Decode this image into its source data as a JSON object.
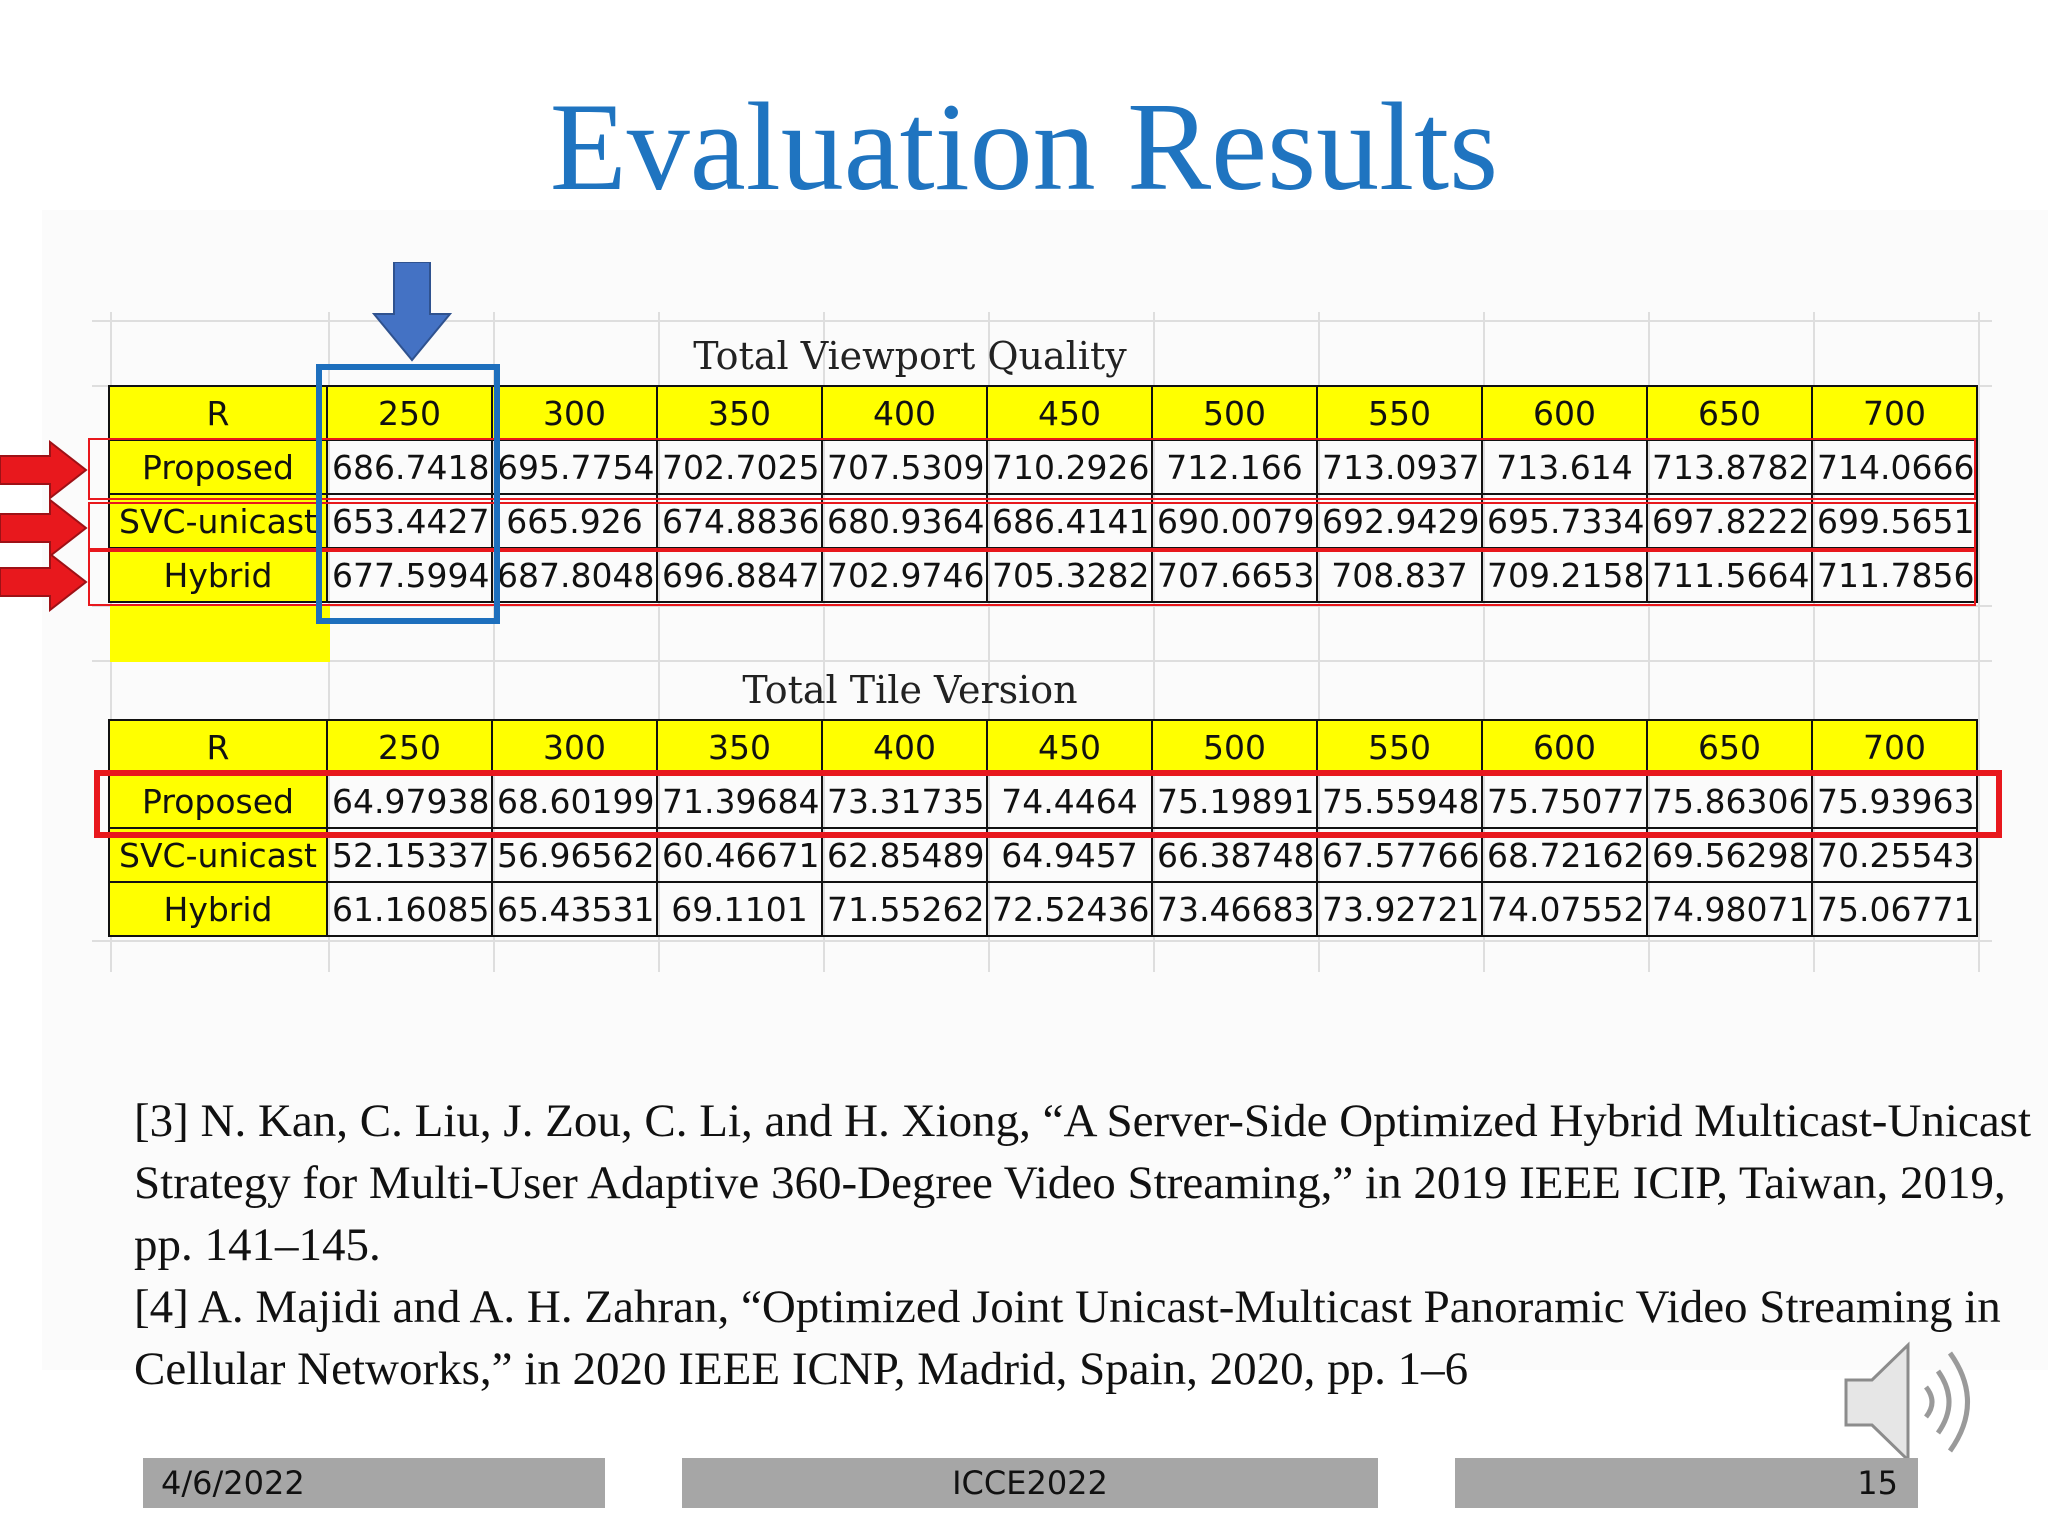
{
  "slide": {
    "title": "Evaluation Results",
    "footer": {
      "date": "4/6/2022",
      "conference": "ICCE2022",
      "page_number": "15"
    }
  },
  "tables": [
    {
      "caption": "Total Viewport Quality",
      "header_label": "R",
      "columns": [
        "250",
        "300",
        "350",
        "400",
        "450",
        "500",
        "550",
        "600",
        "650",
        "700"
      ],
      "rows": [
        {
          "label": "Proposed",
          "values": [
            "686.7418",
            "695.7754",
            "702.7025",
            "707.5309",
            "710.2926",
            "712.166",
            "713.0937",
            "713.614",
            "713.8782",
            "714.0666"
          ]
        },
        {
          "label": "SVC-unicast",
          "values": [
            "653.4427",
            "665.926",
            "674.8836",
            "680.9364",
            "686.4141",
            "690.0079",
            "692.9429",
            "695.7334",
            "697.8222",
            "699.5651"
          ]
        },
        {
          "label": "Hybrid",
          "values": [
            "677.5994",
            "687.8048",
            "696.8847",
            "702.9746",
            "705.3282",
            "707.6653",
            "708.837",
            "709.2158",
            "711.5664",
            "711.7856"
          ]
        }
      ]
    },
    {
      "caption": "Total Tile Version",
      "header_label": "R",
      "columns": [
        "250",
        "300",
        "350",
        "400",
        "450",
        "500",
        "550",
        "600",
        "650",
        "700"
      ],
      "rows": [
        {
          "label": "Proposed",
          "values": [
            "64.97938",
            "68.60199",
            "71.39684",
            "73.31735",
            "74.4464",
            "75.19891",
            "75.55948",
            "75.75077",
            "75.86306",
            "75.93963"
          ]
        },
        {
          "label": "SVC-unicast",
          "values": [
            "52.15337",
            "56.96562",
            "60.46671",
            "62.85489",
            "64.9457",
            "66.38748",
            "67.57766",
            "68.72162",
            "69.56298",
            "70.25543"
          ]
        },
        {
          "label": "Hybrid",
          "values": [
            "61.16085",
            "65.43531",
            "69.1101",
            "71.55262",
            "72.52436",
            "73.46683",
            "73.92721",
            "74.07552",
            "74.98071",
            "75.06771"
          ]
        }
      ]
    }
  ],
  "references": [
    "[3] N. Kan, C. Liu, J. Zou, C. Li, and H. Xiong, “A Server-Side Optimized Hybrid Multicast-Unicast Strategy for Multi-User Adaptive 360-Degree Video Streaming,” in 2019 IEEE ICIP, Taiwan, 2019, pp. 141–145.",
    "[4] A. Majidi and A. H. Zahran, “Optimized Joint Unicast-Multicast Panoramic Video Streaming in Cellular Networks,” in 2020 IEEE ICNP, Madrid, Spain, 2020, pp. 1–6"
  ],
  "colors": {
    "title": "#1f74c0",
    "header_fill": "#ffff00",
    "highlight_red": "#e8181d",
    "highlight_blue": "#1d6fbd",
    "arrow_red": "#e8181d",
    "arrow_blue": "#4472c4"
  },
  "icons": {
    "down_arrow": "down-arrow-icon",
    "right_arrows": "right-arrow-icon",
    "speaker": "speaker-icon"
  }
}
